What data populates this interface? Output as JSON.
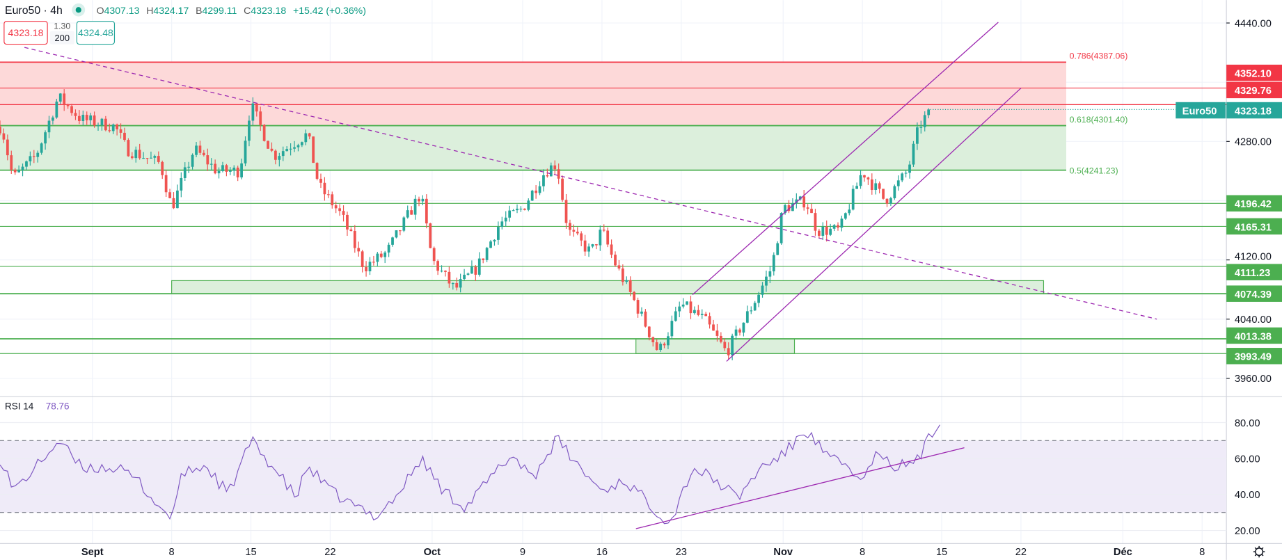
{
  "header": {
    "symbol": "Euro50 · 4h",
    "status_dot_color": "#089981",
    "o_label": "O",
    "o_value": "4307.13",
    "h_label": "H",
    "h_value": "4324.17",
    "b_label": "B",
    "b_value": "4299.11",
    "c_label": "C",
    "c_value": "4323.18",
    "change": "+15.42 (+0.36%)",
    "sell_price": "4323.18",
    "spread": "1.30",
    "quantity": "200",
    "buy_price": "4324.48"
  },
  "colors": {
    "up": "#26a69a",
    "down": "#ef5350",
    "support": "#4caf50",
    "resistance": "#f23645",
    "fib_red_zone": "#fdd9d9",
    "fib_green_zone": "#dcefdc",
    "trendline": "#9c27b0",
    "rsi": "#7e57c2",
    "rsi_band": "#efebf8"
  },
  "chart_data": [
    {
      "type": "candlestick",
      "symbol": "Euro50",
      "timeframe": "4h",
      "last_price": "4323.18",
      "last_label": "Euro50",
      "y_ticks": [
        "4440.00",
        "4280.00",
        "4120.00",
        "4040.00",
        "3960.00"
      ],
      "y_tick_values": [
        4440,
        4280,
        4120,
        4040,
        3960
      ],
      "x_ticks": [
        {
          "label": "Sept",
          "date": "Sep 1"
        },
        {
          "label": "8",
          "date": "Sep 8"
        },
        {
          "label": "15",
          "date": "Sep 15"
        },
        {
          "label": "22",
          "date": "Sep 22"
        },
        {
          "label": "Oct",
          "date": "Oct 1"
        },
        {
          "label": "9",
          "date": "Oct 9"
        },
        {
          "label": "16",
          "date": "Oct 16"
        },
        {
          "label": "23",
          "date": "Oct 23"
        },
        {
          "label": "Nov",
          "date": "Nov 1"
        },
        {
          "label": "8",
          "date": "Nov 8"
        },
        {
          "label": "15",
          "date": "Nov 15"
        },
        {
          "label": "22",
          "date": "Nov 22"
        },
        {
          "label": "Déc",
          "date": "Dec 1"
        },
        {
          "label": "8",
          "date": "Dec 8"
        }
      ],
      "price_path_approx": [
        [
          "Aug 24",
          4300
        ],
        [
          "Aug 25",
          4230
        ],
        [
          "Aug 27",
          4260
        ],
        [
          "Aug 29",
          4340
        ],
        [
          "Aug 31",
          4310
        ],
        [
          "Sep 3",
          4300
        ],
        [
          "Sep 4",
          4270
        ],
        [
          "Sep 7",
          4250
        ],
        [
          "Sep 8",
          4190
        ],
        [
          "Sep 10",
          4270
        ],
        [
          "Sep 12",
          4240
        ],
        [
          "Sep 14",
          4240
        ],
        [
          "Sep 15",
          4330
        ],
        [
          "Sep 17",
          4260
        ],
        [
          "Sep 20",
          4290
        ],
        [
          "Sep 21",
          4220
        ],
        [
          "Sep 23",
          4180
        ],
        [
          "Sep 25",
          4110
        ],
        [
          "Sep 27",
          4130
        ],
        [
          "Sep 30",
          4210
        ],
        [
          "Oct 1",
          4120
        ],
        [
          "Oct 3",
          4080
        ],
        [
          "Oct 5",
          4110
        ],
        [
          "Oct 7",
          4170
        ],
        [
          "Oct 9",
          4190
        ],
        [
          "Oct 11",
          4240
        ],
        [
          "Oct 12",
          4250
        ],
        [
          "Oct 13",
          4160
        ],
        [
          "Oct 15",
          4130
        ],
        [
          "Oct 16",
          4160
        ],
        [
          "Oct 17",
          4120
        ],
        [
          "Oct 19",
          4060
        ],
        [
          "Oct 21",
          3995
        ],
        [
          "Oct 23",
          4060
        ],
        [
          "Oct 25",
          4040
        ],
        [
          "Oct 27",
          3995
        ],
        [
          "Oct 29",
          4050
        ],
        [
          "Oct 31",
          4110
        ],
        [
          "Nov 1",
          4190
        ],
        [
          "Nov 3",
          4200
        ],
        [
          "Nov 4",
          4160
        ],
        [
          "Nov 6",
          4160
        ],
        [
          "Nov 8",
          4240
        ],
        [
          "Nov 10",
          4200
        ],
        [
          "Nov 12",
          4240
        ],
        [
          "Nov 13",
          4300
        ],
        [
          "Nov 14",
          4323.18
        ]
      ],
      "fibonacci": [
        {
          "label": "0.786(4387.06)",
          "price": 4387.06,
          "color": "#f23645"
        },
        {
          "label": "0.618(4301.40)",
          "price": 4301.4,
          "color": "#4caf50"
        },
        {
          "label": "0.5(4241.23)",
          "price": 4241.23,
          "color": "#4caf50"
        }
      ],
      "fib_zone_end": "Nov 26",
      "resistance_levels": [
        {
          "label": "4352.10",
          "price": 4352.1
        },
        {
          "label": "4329.76",
          "price": 4329.76
        }
      ],
      "support_levels": [
        {
          "label": "4196.42",
          "price": 4196.42
        },
        {
          "label": "4165.31",
          "price": 4165.31
        },
        {
          "label": "4111.23",
          "price": 4111.23
        },
        {
          "label": "4074.39",
          "price": 4074.39
        },
        {
          "label": "4013.38",
          "price": 4013.38
        },
        {
          "label": "3993.49",
          "price": 3993.49
        }
      ],
      "zones": [
        {
          "from": "Sep 8",
          "to": "Nov 24",
          "top": 4092,
          "bottom": 4074.39
        },
        {
          "from": "Oct 19",
          "to": "Nov 2",
          "top": 4013.38,
          "bottom": 3993.49
        }
      ],
      "trendlines": [
        {
          "style": "dashed",
          "from": [
            "Aug 26",
            4407
          ],
          "to": [
            "Dec 4",
            4040
          ]
        },
        {
          "style": "solid",
          "from": [
            "Oct 24",
            4073
          ],
          "to": [
            "Nov 20",
            4441
          ]
        },
        {
          "style": "solid",
          "from": [
            "Oct 27",
            3983
          ],
          "to": [
            "Nov 22",
            4352
          ]
        }
      ]
    },
    {
      "type": "line",
      "title": "RSI 14",
      "last_value": "78.76",
      "y_ticks": [
        "80.00",
        "60.00",
        "40.00",
        "20.00"
      ],
      "y_tick_values": [
        80,
        60,
        40,
        20
      ],
      "bands": [
        70,
        30
      ],
      "values_approx": [
        [
          "Aug 24",
          60
        ],
        [
          "Aug 25",
          42
        ],
        [
          "Aug 27",
          55
        ],
        [
          "Aug 29",
          70
        ],
        [
          "Aug 31",
          55
        ],
        [
          "Sep 3",
          55
        ],
        [
          "Sep 5",
          48
        ],
        [
          "Sep 7",
          32
        ],
        [
          "Sep 8",
          28
        ],
        [
          "Sep 9",
          52
        ],
        [
          "Sep 11",
          56
        ],
        [
          "Sep 13",
          40
        ],
        [
          "Sep 15",
          70
        ],
        [
          "Sep 17",
          55
        ],
        [
          "Sep 19",
          38
        ],
        [
          "Sep 20",
          56
        ],
        [
          "Sep 22",
          42
        ],
        [
          "Sep 24",
          34
        ],
        [
          "Sep 26",
          28
        ],
        [
          "Sep 28",
          40
        ],
        [
          "Sep 30",
          60
        ],
        [
          "Oct 2",
          42
        ],
        [
          "Oct 4",
          33
        ],
        [
          "Oct 6",
          48
        ],
        [
          "Oct 8",
          62
        ],
        [
          "Oct 10",
          50
        ],
        [
          "Oct 12",
          71
        ],
        [
          "Oct 14",
          55
        ],
        [
          "Oct 16",
          42
        ],
        [
          "Oct 18",
          48
        ],
        [
          "Oct 20",
          36
        ],
        [
          "Oct 22",
          24
        ],
        [
          "Oct 24",
          55
        ],
        [
          "Oct 26",
          48
        ],
        [
          "Oct 28",
          38
        ],
        [
          "Oct 30",
          55
        ],
        [
          "Nov 1",
          62
        ],
        [
          "Nov 3",
          76
        ],
        [
          "Nov 5",
          60
        ],
        [
          "Nov 7",
          55
        ],
        [
          "Nov 8",
          45
        ],
        [
          "Nov 9",
          62
        ],
        [
          "Nov 11",
          55
        ],
        [
          "Nov 13",
          60
        ],
        [
          "Nov 14",
          73
        ],
        [
          "Nov 15",
          78.76
        ]
      ],
      "trendline": {
        "from": [
          "Oct 19",
          21
        ],
        "to": [
          "Nov 17",
          66
        ]
      }
    }
  ],
  "toolbar": {
    "settings_icon": "gear-icon"
  }
}
